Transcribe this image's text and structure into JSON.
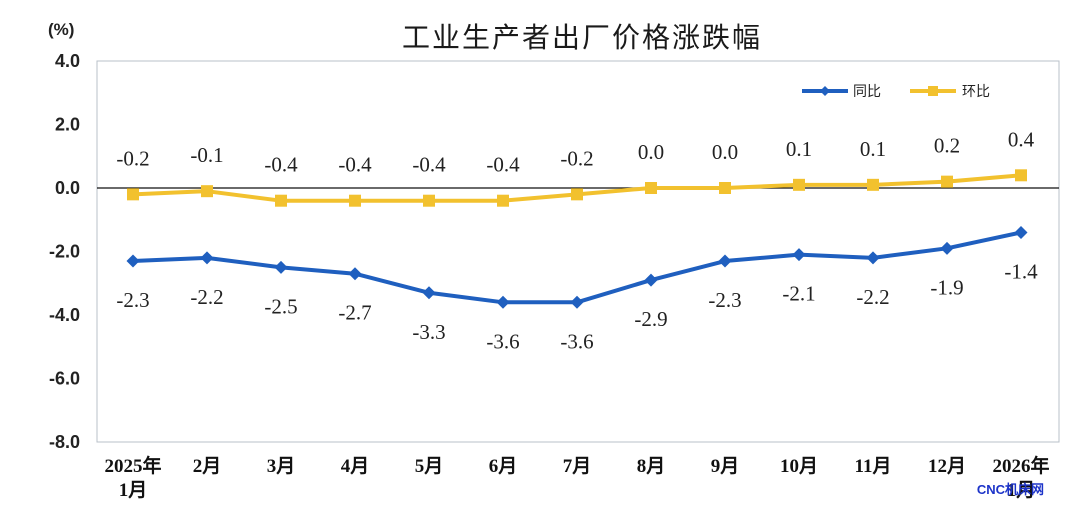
{
  "chart_data": {
    "type": "line",
    "title": "工业生产者出厂价格涨跌幅",
    "unit_label": "(%)",
    "ylim": [
      -8.0,
      4.0
    ],
    "yticks": [
      "4.0",
      "2.0",
      "0.0",
      "-2.0",
      "-4.0",
      "-6.0",
      "-8.0"
    ],
    "ytick_values": [
      4,
      2,
      0,
      -2,
      -4,
      -6,
      -8
    ],
    "categories": [
      [
        "2025年",
        "1月"
      ],
      [
        "2月"
      ],
      [
        "3月"
      ],
      [
        "4月"
      ],
      [
        "5月"
      ],
      [
        "6月"
      ],
      [
        "7月"
      ],
      [
        "8月"
      ],
      [
        "9月"
      ],
      [
        "10月"
      ],
      [
        "11月"
      ],
      [
        "12月"
      ],
      [
        "2026年",
        "1月"
      ]
    ],
    "series": [
      {
        "name": "同比",
        "color": "#1f5fbf",
        "marker": "diamond",
        "values": [
          -2.3,
          -2.2,
          -2.5,
          -2.7,
          -3.3,
          -3.6,
          -3.6,
          -2.9,
          -2.3,
          -2.1,
          -2.2,
          -1.9,
          -1.4
        ],
        "labels": [
          "-2.3",
          "-2.2",
          "-2.5",
          "-2.7",
          "-3.3",
          "-3.6",
          "-3.6",
          "-2.9",
          "-2.3",
          "-2.1",
          "-2.2",
          "-1.9",
          "-1.4"
        ]
      },
      {
        "name": "环比",
        "color": "#f2c12e",
        "marker": "square",
        "values": [
          -0.2,
          -0.1,
          -0.4,
          -0.4,
          -0.4,
          -0.4,
          -0.2,
          0.0,
          0.0,
          0.1,
          0.1,
          0.2,
          0.4
        ],
        "labels": [
          "-0.2",
          "-0.1",
          "-0.4",
          "-0.4",
          "-0.4",
          "-0.4",
          "-0.2",
          "0.0",
          "0.0",
          "0.1",
          "0.1",
          "0.2",
          "0.4"
        ]
      }
    ],
    "legend_position": "top-right",
    "grid": false
  },
  "watermark": "CNC机床网"
}
